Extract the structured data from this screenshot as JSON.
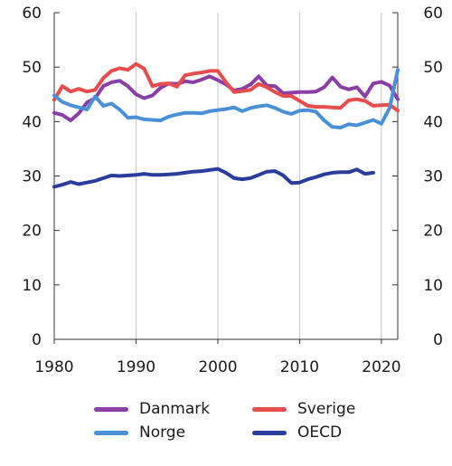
{
  "chart_data": {
    "type": "line",
    "title": "",
    "xlabel": "",
    "ylabel": "",
    "xlim": [
      1980,
      2022
    ],
    "ylim": [
      0,
      60
    ],
    "x_ticks": [
      1980,
      1990,
      2000,
      2010,
      2020
    ],
    "y_ticks": [
      0,
      10,
      20,
      30,
      40,
      50,
      60
    ],
    "y_axis_sides": [
      "left",
      "right"
    ],
    "grid": "vertical",
    "legend_position": "bottom",
    "series": [
      {
        "name": "Danmark",
        "color": "#8a3ea6",
        "x": [
          1980,
          1981,
          1982,
          1983,
          1984,
          1985,
          1986,
          1987,
          1988,
          1989,
          1990,
          1991,
          1992,
          1993,
          1994,
          1995,
          1996,
          1997,
          1998,
          1999,
          2000,
          2001,
          2002,
          2003,
          2004,
          2005,
          2006,
          2007,
          2008,
          2009,
          2010,
          2011,
          2012,
          2013,
          2014,
          2015,
          2016,
          2017,
          2018,
          2019,
          2020,
          2021,
          2022
        ],
        "values": [
          41.6,
          41.2,
          40.2,
          41.5,
          43.5,
          44.3,
          46.5,
          47.2,
          47.5,
          46.5,
          45.0,
          44.3,
          44.8,
          46.2,
          47.0,
          46.9,
          47.4,
          47.2,
          47.7,
          48.3,
          47.6,
          46.8,
          45.7,
          46.0,
          46.8,
          48.3,
          46.6,
          46.5,
          45.2,
          45.3,
          45.4,
          45.4,
          45.5,
          46.3,
          48.1,
          46.4,
          45.9,
          46.3,
          44.6,
          47.0,
          47.3,
          46.6,
          44.1
        ]
      },
      {
        "name": "Sverige",
        "color": "#e84d4d",
        "x": [
          1980,
          1981,
          1982,
          1983,
          1984,
          1985,
          1986,
          1987,
          1988,
          1989,
          1990,
          1991,
          1992,
          1993,
          1994,
          1995,
          1996,
          1997,
          1998,
          1999,
          2000,
          2001,
          2002,
          2003,
          2004,
          2005,
          2006,
          2007,
          2008,
          2009,
          2010,
          2011,
          2012,
          2013,
          2014,
          2015,
          2016,
          2017,
          2018,
          2019,
          2020,
          2021,
          2022
        ],
        "values": [
          44.0,
          46.5,
          45.5,
          46.0,
          45.5,
          45.8,
          48.0,
          49.3,
          49.8,
          49.5,
          50.6,
          49.7,
          46.5,
          46.9,
          47.0,
          46.4,
          48.5,
          48.8,
          49.0,
          49.3,
          49.3,
          47.2,
          45.4,
          45.6,
          45.8,
          46.9,
          46.3,
          45.4,
          44.7,
          44.7,
          43.8,
          42.9,
          42.7,
          42.7,
          42.6,
          42.5,
          43.9,
          44.1,
          43.8,
          42.9,
          43.0,
          43.1,
          42.0
        ]
      },
      {
        "name": "Norge",
        "color": "#4a90d9",
        "x": [
          1980,
          1981,
          1982,
          1983,
          1984,
          1985,
          1986,
          1987,
          1988,
          1989,
          1990,
          1991,
          1992,
          1993,
          1994,
          1995,
          1996,
          1997,
          1998,
          1999,
          2000,
          2001,
          2002,
          2003,
          2004,
          2005,
          2006,
          2007,
          2008,
          2009,
          2010,
          2011,
          2012,
          2013,
          2014,
          2015,
          2016,
          2017,
          2018,
          2019,
          2020,
          2021,
          2022
        ],
        "values": [
          44.8,
          43.6,
          43.0,
          42.6,
          42.2,
          44.6,
          42.9,
          43.3,
          42.2,
          40.7,
          40.8,
          40.4,
          40.3,
          40.2,
          40.9,
          41.3,
          41.6,
          41.6,
          41.5,
          41.9,
          42.1,
          42.3,
          42.6,
          41.9,
          42.5,
          42.8,
          43.0,
          42.5,
          41.8,
          41.4,
          42.0,
          42.1,
          41.8,
          40.2,
          39.0,
          38.9,
          39.5,
          39.3,
          39.8,
          40.3,
          39.6,
          42.5,
          49.5
        ]
      },
      {
        "name": "OECD",
        "color": "#2a3d9c",
        "x": [
          1980,
          1981,
          1982,
          1983,
          1984,
          1985,
          1986,
          1987,
          1988,
          1989,
          1990,
          1991,
          1992,
          1993,
          1994,
          1995,
          1996,
          1997,
          1998,
          1999,
          2000,
          2001,
          2002,
          2003,
          2004,
          2005,
          2006,
          2007,
          2008,
          2009,
          2010,
          2011,
          2012,
          2013,
          2014,
          2015,
          2016,
          2017,
          2018,
          2019
        ],
        "values": [
          28.0,
          28.4,
          28.9,
          28.5,
          28.8,
          29.1,
          29.6,
          30.1,
          30.0,
          30.1,
          30.2,
          30.4,
          30.2,
          30.2,
          30.3,
          30.4,
          30.6,
          30.8,
          30.9,
          31.1,
          31.3,
          30.6,
          29.6,
          29.4,
          29.6,
          30.2,
          30.8,
          30.9,
          30.1,
          28.7,
          28.8,
          29.4,
          29.8,
          30.3,
          30.6,
          30.7,
          30.7,
          31.2,
          30.4,
          30.6
        ]
      }
    ]
  }
}
